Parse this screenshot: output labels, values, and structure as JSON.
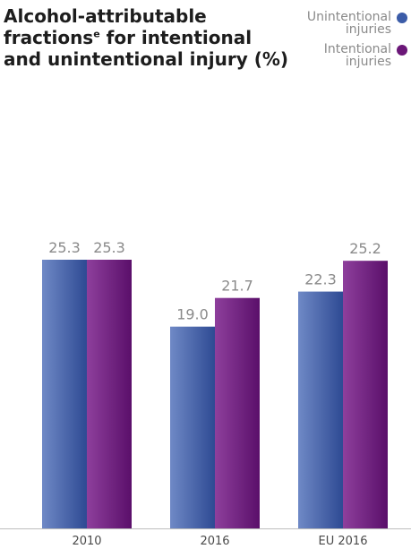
{
  "title_main": "Alcohol-attributable fractions",
  "title_sup": "e",
  "title_rest": " for intentional and unintentional injury (%)",
  "legend": [
    {
      "line1": "Unintentional",
      "line2": "injuries",
      "color": "#3b5ca8"
    },
    {
      "line1": "Intentional",
      "line2": "injuries",
      "color": "#6b1778"
    }
  ],
  "chart_data": {
    "type": "bar",
    "title": "Alcohol-attributable fractionsᵉ for intentional and unintentional injury (%)",
    "categories": [
      "2010",
      "2016",
      "EU 2016"
    ],
    "series": [
      {
        "name": "Unintentional injuries",
        "values": [
          25.3,
          19.0,
          22.3
        ],
        "color": "#3b5ca8"
      },
      {
        "name": "Intentional injuries",
        "values": [
          25.3,
          21.7,
          25.2
        ],
        "color": "#6b1778"
      }
    ],
    "data_labels": [
      [
        "25.3",
        "19.0",
        "22.3"
      ],
      [
        "25.3",
        "21.7",
        "25.2"
      ]
    ],
    "ylim": [
      0,
      25.3
    ],
    "grid": false,
    "legend_position": "top-right"
  }
}
